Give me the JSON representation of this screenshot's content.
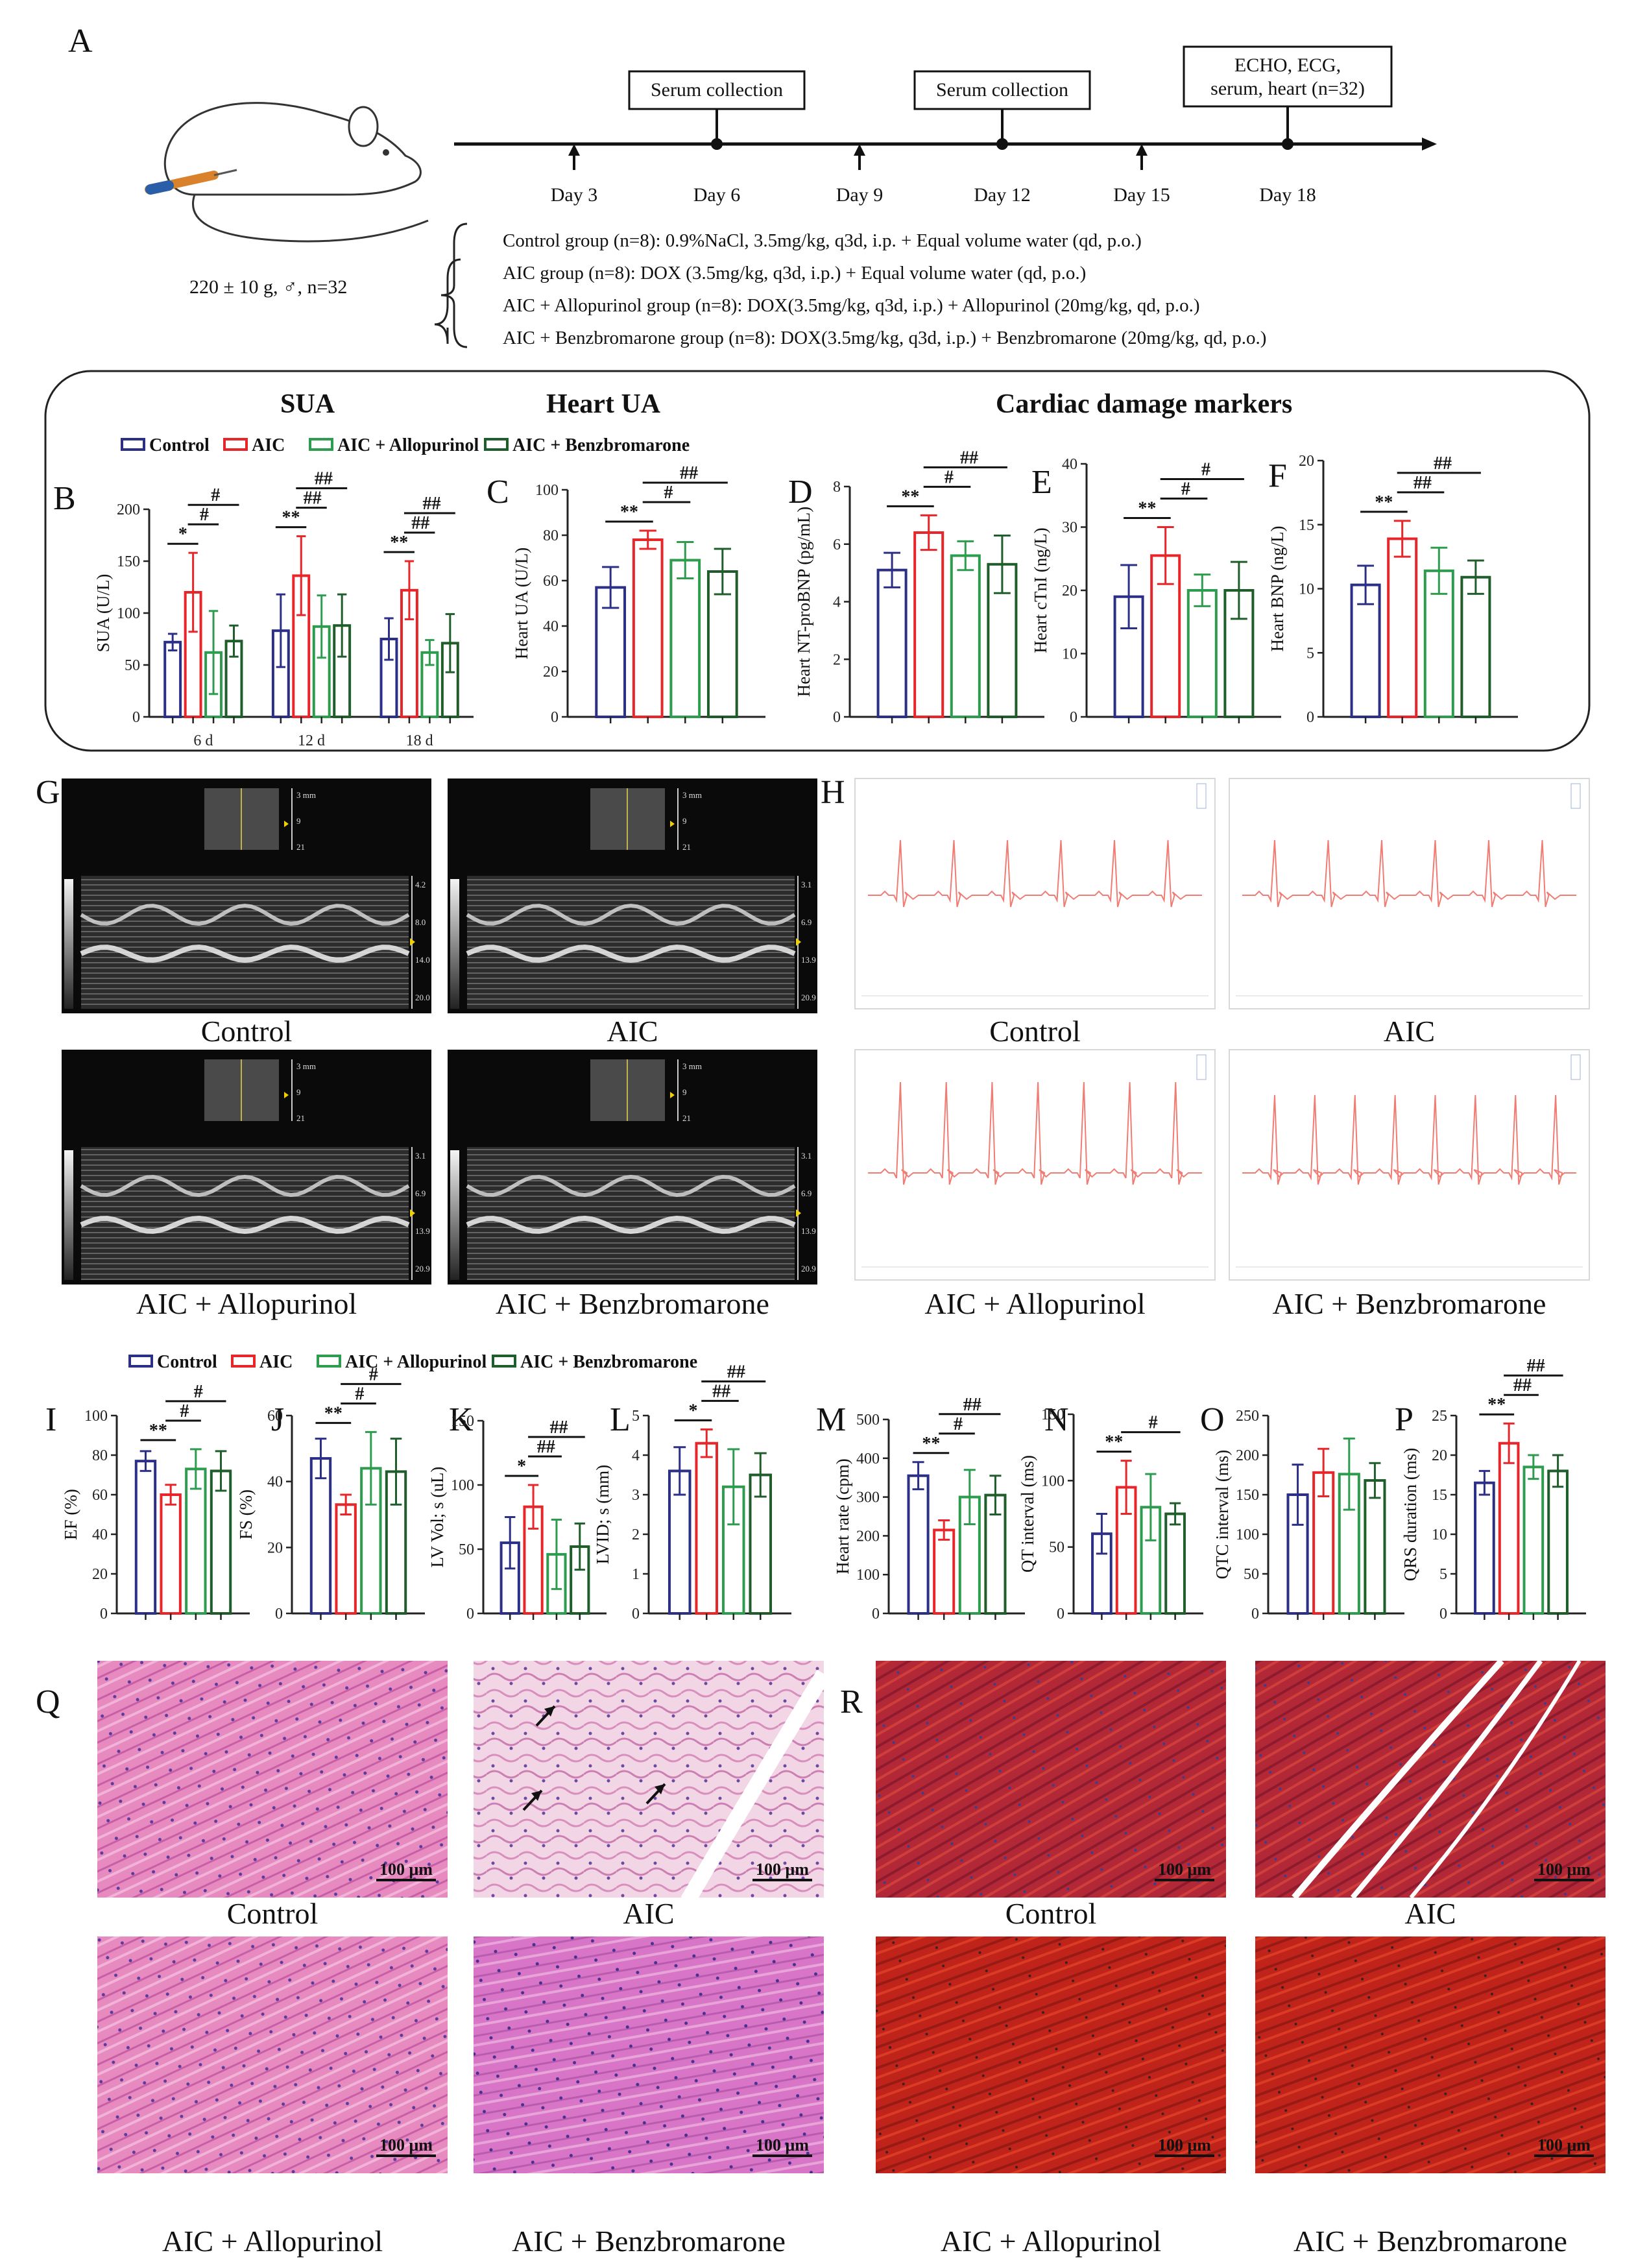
{
  "panel_letters": [
    "A",
    "B",
    "C",
    "D",
    "E",
    "F",
    "G",
    "H",
    "I",
    "J",
    "K",
    "L",
    "M",
    "N",
    "O",
    "P",
    "Q",
    "R"
  ],
  "timeline": {
    "days": [
      "Day 3",
      "Day 6",
      "Day 9",
      "Day 12",
      "Day 15",
      "Day 18"
    ],
    "boxes": [
      "Serum collection",
      "Serum collection",
      "ECHO, ECG,\nserum, heart  (n=32)"
    ],
    "animal": "220 ± 10 g, ♂,  n=32",
    "groups": [
      "Control group (n=8): 0.9%NaCl, 3.5mg/kg, q3d, i.p. + Equal volume water (qd, p.o.)",
      "AIC group (n=8): DOX (3.5mg/kg, q3d, i.p.) + Equal volume water (qd, p.o.)",
      "AIC + Allopurinol group (n=8): DOX(3.5mg/kg, q3d, i.p.)  + Allopurinol (20mg/kg, qd, p.o.)",
      "AIC + Benzbromarone group (n=8): DOX(3.5mg/kg, q3d, i.p.)  + Benzbromarone (20mg/kg, qd, p.o.)"
    ]
  },
  "sections": {
    "sua": "SUA",
    "heart_ua": "Heart UA",
    "cardiac": "Cardiac damage markers"
  },
  "legend": [
    "Control",
    "AIC",
    "AIC + Allopurinol",
    "AIC + Benzbromarone"
  ],
  "colors": {
    "control": "#2b2f86",
    "aic": "#e8262a",
    "allopurinol": "#2e9c4e",
    "benzbromarone": "#1f5e2a"
  },
  "image_captions": {
    "G": [
      "Control",
      "AIC",
      "AIC + Allopurinol",
      "AIC + Benzbromarone"
    ],
    "H": [
      "Control",
      "AIC",
      "AIC + Allopurinol",
      "AIC + Benzbromarone"
    ],
    "Q": [
      "Control",
      "AIC",
      "AIC + Allopurinol",
      "AIC + Benzbromarone"
    ],
    "R": [
      "Control",
      "AIC",
      "AIC + Allopurinol",
      "AIC + Benzbromarone"
    ]
  },
  "echo_scale": {
    "top": [
      "3 mm",
      "9",
      "21"
    ],
    "control": [
      "4.2",
      "8.0",
      "14.0",
      "20.0"
    ],
    "aic": [
      "3.1",
      "6.9",
      "13.9",
      "20.9"
    ],
    "allopurinol": [
      "3.1",
      "6.9",
      "13.9",
      "20.9"
    ],
    "benzbromarone": [
      "3.1",
      "6.9",
      "13.9",
      "20.9"
    ]
  },
  "scale_bar": "100 μm",
  "chart_data": [
    {
      "panel": "B",
      "type": "bar",
      "categories": [
        "6 d",
        "12 d",
        "18 d"
      ],
      "ylabel": "SUA (U/L)",
      "ylim": [
        0,
        200
      ],
      "yticks": [
        0,
        50,
        100,
        150,
        200
      ],
      "series": [
        {
          "name": "Control",
          "values": [
            72,
            83,
            75
          ],
          "err": [
            8,
            35,
            20
          ]
        },
        {
          "name": "AIC",
          "values": [
            120,
            136,
            122
          ],
          "err": [
            38,
            38,
            28
          ]
        },
        {
          "name": "AIC + Allopurinol",
          "values": [
            62,
            87,
            62
          ],
          "err": [
            40,
            30,
            12
          ]
        },
        {
          "name": "AIC + Benzbromarone",
          "values": [
            73,
            88,
            71
          ],
          "err": [
            15,
            30,
            28
          ]
        }
      ],
      "sig": [
        {
          "text": "*",
          "group": 0,
          "from": 0,
          "to": 1,
          "level": 0
        },
        {
          "text": "#",
          "group": 0,
          "from": 1,
          "to": 2,
          "level": 1
        },
        {
          "text": "#",
          "group": 0,
          "from": 1,
          "to": 3,
          "level": 2
        },
        {
          "text": "**",
          "group": 1,
          "from": 0,
          "to": 1,
          "level": 0
        },
        {
          "text": "##",
          "group": 1,
          "from": 1,
          "to": 2,
          "level": 1
        },
        {
          "text": "##",
          "group": 1,
          "from": 1,
          "to": 3,
          "level": 2
        },
        {
          "text": "**",
          "group": 2,
          "from": 0,
          "to": 1,
          "level": 0
        },
        {
          "text": "##",
          "group": 2,
          "from": 1,
          "to": 2,
          "level": 1
        },
        {
          "text": "##",
          "group": 2,
          "from": 1,
          "to": 3,
          "level": 2
        }
      ]
    },
    {
      "panel": "C",
      "type": "bar",
      "ylabel": "Heart UA (U/L)",
      "ylim": [
        0,
        100
      ],
      "yticks": [
        0,
        20,
        40,
        60,
        80,
        100
      ],
      "series": [
        {
          "name": "Control",
          "values": [
            57
          ],
          "err": [
            9
          ]
        },
        {
          "name": "AIC",
          "values": [
            78
          ],
          "err": [
            4
          ]
        },
        {
          "name": "AIC + Allopurinol",
          "values": [
            69
          ],
          "err": [
            8
          ]
        },
        {
          "name": "AIC + Benzbromarone",
          "values": [
            64
          ],
          "err": [
            10
          ]
        }
      ],
      "sig": [
        {
          "text": "**",
          "from": 0,
          "to": 1,
          "level": 0
        },
        {
          "text": "#",
          "from": 1,
          "to": 2,
          "level": 1
        },
        {
          "text": "##",
          "from": 1,
          "to": 3,
          "level": 2
        }
      ]
    },
    {
      "panel": "D",
      "type": "bar",
      "ylabel": "Heart NT-proBNP (pg/mL)",
      "ylim": [
        0,
        8
      ],
      "yticks": [
        0,
        2,
        4,
        6,
        8
      ],
      "series": [
        {
          "name": "Control",
          "values": [
            5.1
          ],
          "err": [
            0.6
          ]
        },
        {
          "name": "AIC",
          "values": [
            6.4
          ],
          "err": [
            0.6
          ]
        },
        {
          "name": "AIC + Allopurinol",
          "values": [
            5.6
          ],
          "err": [
            0.5
          ]
        },
        {
          "name": "AIC + Benzbromarone",
          "values": [
            5.3
          ],
          "err": [
            1.0
          ]
        }
      ],
      "sig": [
        {
          "text": "**",
          "from": 0,
          "to": 1,
          "level": 0
        },
        {
          "text": "#",
          "from": 1,
          "to": 2,
          "level": 1
        },
        {
          "text": "##",
          "from": 1,
          "to": 3,
          "level": 2
        }
      ]
    },
    {
      "panel": "E",
      "type": "bar",
      "ylabel": "Heart cTnI (ng/L)",
      "ylim": [
        0,
        40
      ],
      "yticks": [
        0,
        10,
        20,
        30,
        40
      ],
      "series": [
        {
          "name": "Control",
          "values": [
            19
          ],
          "err": [
            5
          ]
        },
        {
          "name": "AIC",
          "values": [
            25.5
          ],
          "err": [
            4.5
          ]
        },
        {
          "name": "AIC + Allopurinol",
          "values": [
            20
          ],
          "err": [
            2.5
          ]
        },
        {
          "name": "AIC + Benzbromarone",
          "values": [
            20
          ],
          "err": [
            4.5
          ]
        }
      ],
      "sig": [
        {
          "text": "**",
          "from": 0,
          "to": 1,
          "level": 0
        },
        {
          "text": "#",
          "from": 1,
          "to": 2,
          "level": 1
        },
        {
          "text": "#",
          "from": 1,
          "to": 3,
          "level": 2
        }
      ]
    },
    {
      "panel": "F",
      "type": "bar",
      "ylabel": "Heart BNP (ng/L)",
      "ylim": [
        0,
        20
      ],
      "yticks": [
        0,
        5,
        10,
        15,
        20
      ],
      "series": [
        {
          "name": "Control",
          "values": [
            10.3
          ],
          "err": [
            1.5
          ]
        },
        {
          "name": "AIC",
          "values": [
            13.9
          ],
          "err": [
            1.4
          ]
        },
        {
          "name": "AIC + Allopurinol",
          "values": [
            11.4
          ],
          "err": [
            1.8
          ]
        },
        {
          "name": "AIC + Benzbromarone",
          "values": [
            10.9
          ],
          "err": [
            1.3
          ]
        }
      ],
      "sig": [
        {
          "text": "**",
          "from": 0,
          "to": 1,
          "level": 0
        },
        {
          "text": "##",
          "from": 1,
          "to": 2,
          "level": 1
        },
        {
          "text": "##",
          "from": 1,
          "to": 3,
          "level": 2
        }
      ]
    },
    {
      "panel": "I",
      "type": "bar",
      "ylabel": "EF (%)",
      "ylim": [
        0,
        100
      ],
      "yticks": [
        0,
        20,
        40,
        60,
        80,
        100
      ],
      "series": [
        {
          "name": "Control",
          "values": [
            77
          ],
          "err": [
            5
          ]
        },
        {
          "name": "AIC",
          "values": [
            60
          ],
          "err": [
            5
          ]
        },
        {
          "name": "AIC + Allopurinol",
          "values": [
            73
          ],
          "err": [
            10
          ]
        },
        {
          "name": "AIC + Benzbromarone",
          "values": [
            72
          ],
          "err": [
            10
          ]
        }
      ],
      "sig": [
        {
          "text": "**",
          "from": 0,
          "to": 1,
          "level": 0
        },
        {
          "text": "#",
          "from": 1,
          "to": 2,
          "level": 1
        },
        {
          "text": "#",
          "from": 1,
          "to": 3,
          "level": 2
        }
      ]
    },
    {
      "panel": "J",
      "type": "bar",
      "ylabel": "FS (%)",
      "ylim": [
        0,
        60
      ],
      "yticks": [
        0,
        20,
        40,
        60
      ],
      "series": [
        {
          "name": "Control",
          "values": [
            47
          ],
          "err": [
            6
          ]
        },
        {
          "name": "AIC",
          "values": [
            33
          ],
          "err": [
            3
          ]
        },
        {
          "name": "AIC + Allopurinol",
          "values": [
            44
          ],
          "err": [
            11
          ]
        },
        {
          "name": "AIC + Benzbromarone",
          "values": [
            43
          ],
          "err": [
            10
          ]
        }
      ],
      "sig": [
        {
          "text": "**",
          "from": 0,
          "to": 1,
          "level": 0
        },
        {
          "text": "#",
          "from": 1,
          "to": 2,
          "level": 1
        },
        {
          "text": "#",
          "from": 1,
          "to": 3,
          "level": 2
        }
      ]
    },
    {
      "panel": "K",
      "type": "bar",
      "ylabel": "LV Vol; s (uL)",
      "ylim": [
        0,
        150
      ],
      "yticks": [
        0,
        50,
        100,
        150
      ],
      "series": [
        {
          "name": "Control",
          "values": [
            55
          ],
          "err": [
            20
          ]
        },
        {
          "name": "AIC",
          "values": [
            83
          ],
          "err": [
            17
          ]
        },
        {
          "name": "AIC + Allopurinol",
          "values": [
            46
          ],
          "err": [
            27
          ]
        },
        {
          "name": "AIC + Benzbromarone",
          "values": [
            52
          ],
          "err": [
            18
          ]
        }
      ],
      "sig": [
        {
          "text": "*",
          "from": 0,
          "to": 1,
          "level": 0
        },
        {
          "text": "##",
          "from": 1,
          "to": 2,
          "level": 1
        },
        {
          "text": "##",
          "from": 1,
          "to": 3,
          "level": 2
        }
      ]
    },
    {
      "panel": "L",
      "type": "bar",
      "ylabel": "LVID; s (mm)",
      "ylim": [
        0,
        5
      ],
      "yticks": [
        0,
        1,
        2,
        3,
        4,
        5
      ],
      "series": [
        {
          "name": "Control",
          "values": [
            3.6
          ],
          "err": [
            0.6
          ]
        },
        {
          "name": "AIC",
          "values": [
            4.3
          ],
          "err": [
            0.35
          ]
        },
        {
          "name": "AIC + Allopurinol",
          "values": [
            3.2
          ],
          "err": [
            0.95
          ]
        },
        {
          "name": "AIC + Benzbromarone",
          "values": [
            3.5
          ],
          "err": [
            0.55
          ]
        }
      ],
      "sig": [
        {
          "text": "*",
          "from": 0,
          "to": 1,
          "level": 0
        },
        {
          "text": "##",
          "from": 1,
          "to": 2,
          "level": 1
        },
        {
          "text": "##",
          "from": 1,
          "to": 3,
          "level": 2
        }
      ]
    },
    {
      "panel": "M",
      "type": "bar",
      "ylabel": "Heart rate (cpm)",
      "ylim": [
        0,
        500
      ],
      "yticks": [
        0,
        100,
        200,
        300,
        400,
        500
      ],
      "series": [
        {
          "name": "Control",
          "values": [
            355
          ],
          "err": [
            35
          ]
        },
        {
          "name": "AIC",
          "values": [
            215
          ],
          "err": [
            25
          ]
        },
        {
          "name": "AIC + Allopurinol",
          "values": [
            300
          ],
          "err": [
            70
          ]
        },
        {
          "name": "AIC + Benzbromarone",
          "values": [
            305
          ],
          "err": [
            50
          ]
        }
      ],
      "sig": [
        {
          "text": "**",
          "from": 0,
          "to": 1,
          "level": 0
        },
        {
          "text": "#",
          "from": 1,
          "to": 2,
          "level": 1
        },
        {
          "text": "##",
          "from": 1,
          "to": 3,
          "level": 2
        }
      ]
    },
    {
      "panel": "N",
      "type": "bar",
      "ylabel": "QT interval (ms)",
      "ylim": [
        0,
        150
      ],
      "yticks": [
        0,
        50,
        100,
        150
      ],
      "series": [
        {
          "name": "Control",
          "values": [
            60
          ],
          "err": [
            15
          ]
        },
        {
          "name": "AIC",
          "values": [
            95
          ],
          "err": [
            20
          ]
        },
        {
          "name": "AIC + Allopurinol",
          "values": [
            80
          ],
          "err": [
            25
          ]
        },
        {
          "name": "AIC + Benzbromarone",
          "values": [
            75
          ],
          "err": [
            8
          ]
        }
      ],
      "sig": [
        {
          "text": "**",
          "from": 0,
          "to": 1,
          "level": 0
        },
        {
          "text": "#",
          "from": 1,
          "to": 3,
          "level": 1
        }
      ]
    },
    {
      "panel": "O",
      "type": "bar",
      "ylabel": "QTC interval (ms)",
      "ylim": [
        0,
        250
      ],
      "yticks": [
        0,
        50,
        100,
        150,
        200,
        250
      ],
      "series": [
        {
          "name": "Control",
          "values": [
            150
          ],
          "err": [
            38
          ]
        },
        {
          "name": "AIC",
          "values": [
            178
          ],
          "err": [
            30
          ]
        },
        {
          "name": "AIC + Allopurinol",
          "values": [
            176
          ],
          "err": [
            45
          ]
        },
        {
          "name": "AIC + Benzbromarone",
          "values": [
            168
          ],
          "err": [
            22
          ]
        }
      ],
      "sig": []
    },
    {
      "panel": "P",
      "type": "bar",
      "ylabel": "QRS duration (ms)",
      "ylim": [
        0,
        25
      ],
      "yticks": [
        0,
        5,
        10,
        15,
        20,
        25
      ],
      "series": [
        {
          "name": "Control",
          "values": [
            16.5
          ],
          "err": [
            1.5
          ]
        },
        {
          "name": "AIC",
          "values": [
            21.5
          ],
          "err": [
            2.5
          ]
        },
        {
          "name": "AIC + Allopurinol",
          "values": [
            18.5
          ],
          "err": [
            1.5
          ]
        },
        {
          "name": "AIC + Benzbromarone",
          "values": [
            18
          ],
          "err": [
            2
          ]
        }
      ],
      "sig": [
        {
          "text": "**",
          "from": 0,
          "to": 1,
          "level": 0
        },
        {
          "text": "##",
          "from": 1,
          "to": 2,
          "level": 1
        },
        {
          "text": "##",
          "from": 1,
          "to": 3,
          "level": 2
        }
      ]
    }
  ]
}
